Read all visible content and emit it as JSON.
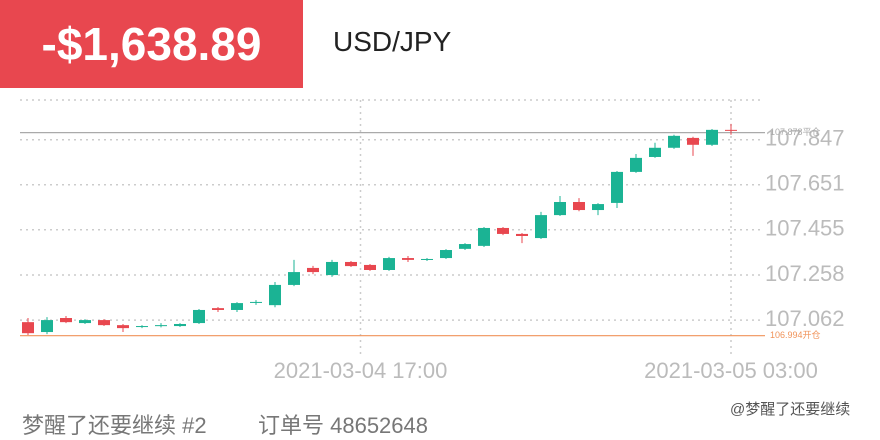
{
  "header": {
    "pnl": "-$1,638.89",
    "symbol": "USD/JPY"
  },
  "footer": {
    "account": "梦醒了还要继续 #2",
    "order": "订单号 48652648",
    "watermark": "@梦醒了还要继续"
  },
  "chart_data": {
    "type": "candlestick",
    "open": [
      107.053,
      107.01,
      107.071,
      107.049,
      107.062,
      107.04,
      107.032,
      107.038,
      107.036,
      107.049,
      107.114,
      107.106,
      107.138,
      107.127,
      107.215,
      107.289,
      107.258,
      107.315,
      107.302,
      107.28,
      107.332,
      107.324,
      107.332,
      107.372,
      107.385,
      107.463,
      107.437,
      107.419,
      107.519,
      107.576,
      107.541,
      107.572,
      107.707,
      107.772,
      107.812,
      107.855,
      107.825,
      107.89
    ],
    "high": [
      107.071,
      107.075,
      107.08,
      107.066,
      107.066,
      107.045,
      107.04,
      107.049,
      107.049,
      107.11,
      107.119,
      107.14,
      107.149,
      107.228,
      107.324,
      107.298,
      107.324,
      107.319,
      107.306,
      107.337,
      107.341,
      107.332,
      107.371,
      107.397,
      107.467,
      107.467,
      107.441,
      107.533,
      107.602,
      107.593,
      107.571,
      107.711,
      107.785,
      107.834,
      107.869,
      107.86,
      107.894,
      107.916
    ],
    "low": [
      106.997,
      107.001,
      107.049,
      107.045,
      107.036,
      107.01,
      107.027,
      107.03,
      107.032,
      107.045,
      107.097,
      107.097,
      107.128,
      107.118,
      107.21,
      107.262,
      107.25,
      107.293,
      107.276,
      107.276,
      107.315,
      107.319,
      107.328,
      107.367,
      107.38,
      107.432,
      107.397,
      107.415,
      107.515,
      107.536,
      107.519,
      107.55,
      107.703,
      107.768,
      107.807,
      107.777,
      107.82,
      107.869
    ],
    "close": [
      107.005,
      107.062,
      107.053,
      107.062,
      107.04,
      107.027,
      107.036,
      107.04,
      107.045,
      107.106,
      107.106,
      107.136,
      107.141,
      107.215,
      107.271,
      107.271,
      107.315,
      107.297,
      107.28,
      107.332,
      107.324,
      107.328,
      107.367,
      107.393,
      107.463,
      107.437,
      107.428,
      107.519,
      107.576,
      107.541,
      107.567,
      107.707,
      107.768,
      107.812,
      107.864,
      107.825,
      107.89,
      107.886
    ],
    "up_color": "#1bb394",
    "down_color": "#e8474f",
    "xlim": [
      -1,
      39
    ],
    "xticks": [
      {
        "value": 17.5,
        "label": "2021-03-04 17:00"
      },
      {
        "value": 37,
        "label": "2021-03-05 03:00"
      }
    ],
    "ylim": [
      106.91,
      108.02
    ],
    "yticks": [
      107.062,
      107.258,
      107.455,
      107.651,
      107.847
    ],
    "grid": true,
    "reference_lines": [
      {
        "value": 107.878,
        "label": "107.878平仓",
        "color": "#aaaaaa"
      },
      {
        "value": 106.994,
        "label": "106.994开仓",
        "color": "#f0935a"
      }
    ]
  }
}
